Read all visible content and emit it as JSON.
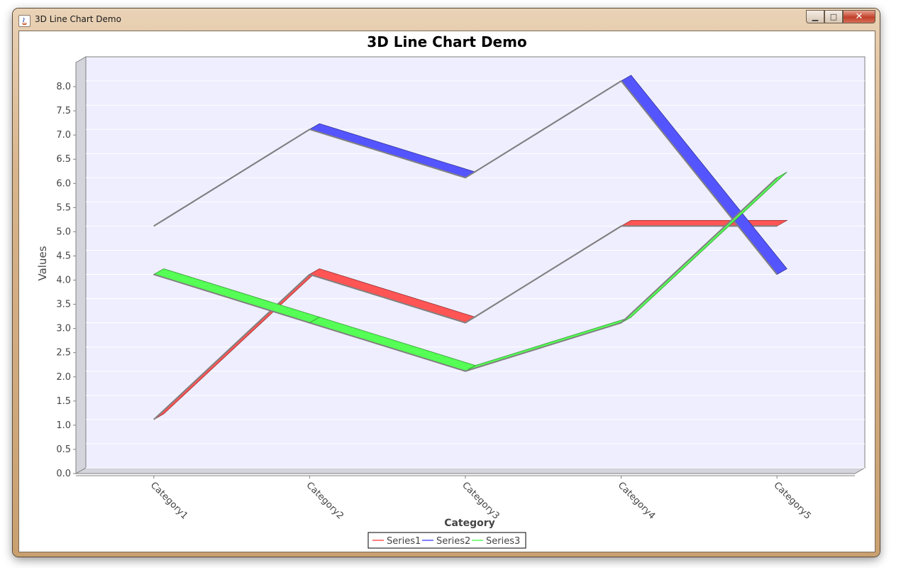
{
  "window": {
    "title": "3D Line Chart Demo",
    "controls": [
      "minimize",
      "maximize",
      "close"
    ]
  },
  "chart_data": {
    "type": "line",
    "title": "3D Line Chart Demo",
    "xlabel": "Category",
    "ylabel": "Values",
    "categories": [
      "Category1",
      "Category2",
      "Category3",
      "Category4",
      "Category5"
    ],
    "series": [
      {
        "name": "Series1",
        "color": "#ff5555",
        "values": [
          1.0,
          4.0,
          3.0,
          5.0,
          5.0
        ]
      },
      {
        "name": "Series2",
        "color": "#5555ff",
        "values": [
          5.0,
          7.0,
          6.0,
          8.0,
          4.0
        ]
      },
      {
        "name": "Series3",
        "color": "#55ff55",
        "values": [
          4.0,
          3.0,
          2.0,
          3.0,
          6.0
        ]
      }
    ],
    "ylim": [
      0,
      8.5
    ],
    "yticks": [
      "0.0",
      "0.5",
      "1.0",
      "1.5",
      "2.0",
      "2.5",
      "3.0",
      "3.5",
      "4.0",
      "4.5",
      "5.0",
      "5.5",
      "6.0",
      "6.5",
      "7.0",
      "7.5",
      "8.0"
    ],
    "grid": true,
    "legend": "bottom-center",
    "plot_background": "#eeeeff",
    "outline_color": "#808080"
  }
}
